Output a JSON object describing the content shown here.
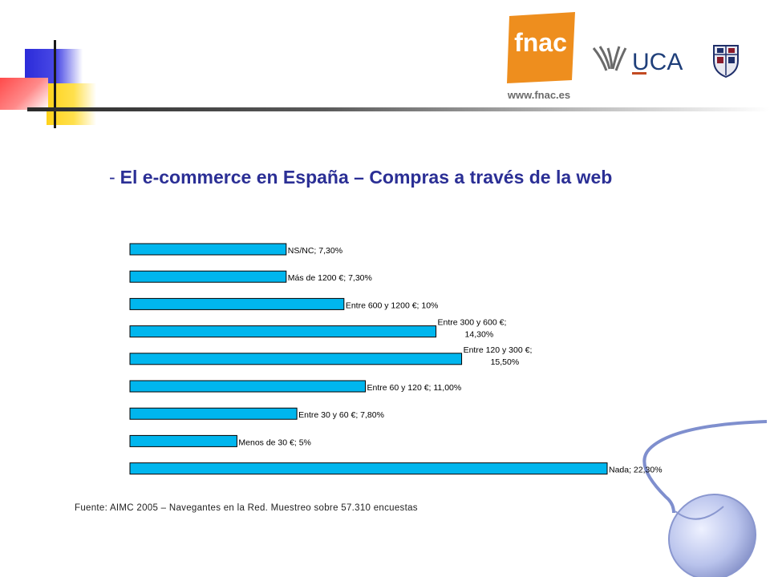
{
  "title": "El e-commerce en España – Compras a través de la web",
  "title_dash": "-",
  "source": "Fuente: AIMC 2005 – Navegantes en la Red. Muestreo sobre 57.310 encuestas",
  "logos": {
    "fnac_text": "fnac",
    "fnac_url": "www.fnac.es",
    "uca_text": "UCA"
  },
  "colors": {
    "bar_fill": "#00b6ee",
    "bar_stroke": "#000000",
    "title": "#2b2f95",
    "fnac_orange": "#ee8e1e",
    "uca_blue": "#1f3f7a",
    "uca_red": "#c24a22"
  },
  "chart_data": {
    "type": "bar",
    "orientation": "horizontal",
    "categories": [
      "NS/NC",
      "Más de 1200 €",
      "Entre 600 y 1200 €",
      "Entre 300 y 600 €",
      "Entre 120 y 300 €",
      "Entre 60 y 120 €",
      "Entre 30 y 60 €",
      "Menos de 30 €",
      "Nada"
    ],
    "values": [
      7.3,
      7.3,
      10,
      14.3,
      15.5,
      11.0,
      7.8,
      5,
      22.3
    ],
    "data_labels": [
      [
        "NS/NC; 7,30%"
      ],
      [
        "Más de 1200 €; 7,30%"
      ],
      [
        "Entre 600 y 1200 €; 10%"
      ],
      [
        "Entre 300 y 600 €;",
        "14,30%"
      ],
      [
        "Entre 120 y 300 €;",
        "15,50%"
      ],
      [
        "Entre 60 y 120 €; 11,00%"
      ],
      [
        "Entre 30 y 60 €; 7,80%"
      ],
      [
        "Menos de 30 €; 5%"
      ],
      [
        "Nada; 22,30%"
      ]
    ],
    "title": "",
    "xlabel": "",
    "ylabel": "",
    "xlim": [
      0,
      22.3
    ],
    "grid": false,
    "legend": "none"
  }
}
